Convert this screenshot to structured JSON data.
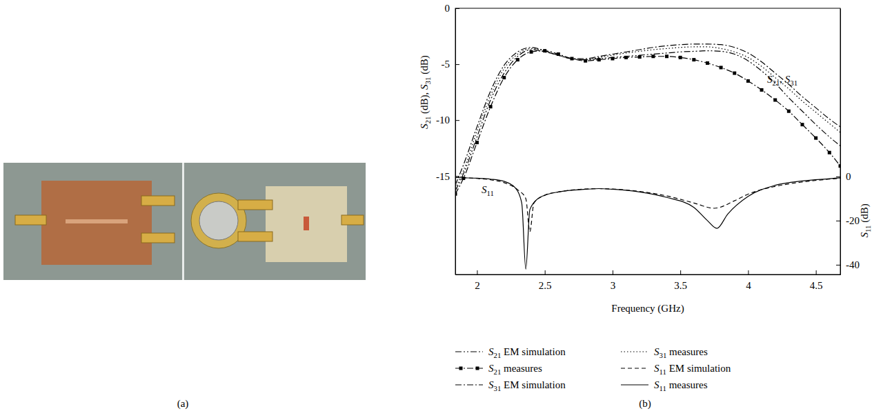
{
  "figure": {
    "panel_labels": [
      "(a)",
      "(b)"
    ]
  },
  "chart_data": {
    "type": "line",
    "x_label": "Frequency (GHz)",
    "y_label": "S21 (dB), S31 (dB)",
    "y2_label": "S11 (dB)",
    "xlim": [
      1.84,
      4.68
    ],
    "ylim": [
      -23.8,
      0
    ],
    "y2lim": [
      -44.4,
      76.2
    ],
    "xticks": [
      2,
      2.5,
      3,
      3.5,
      4,
      4.5
    ],
    "yticks": [
      0,
      -5,
      -10,
      -15
    ],
    "y2ticks": [
      0,
      -20,
      -40
    ],
    "legend": "bottom",
    "annotations": [
      "S21, S31",
      "S11"
    ],
    "x": [
      1.84,
      1.9,
      2.0,
      2.1,
      2.2,
      2.3,
      2.4,
      2.5,
      2.6,
      2.7,
      2.8,
      2.9,
      3.0,
      3.1,
      3.2,
      3.3,
      3.4,
      3.5,
      3.6,
      3.7,
      3.8,
      3.9,
      4.0,
      4.1,
      4.2,
      4.3,
      4.4,
      4.5,
      4.6,
      4.68
    ],
    "series": [
      {
        "name": "S21 EM simulation",
        "color": "#000000",
        "line_style": "dash-dot-dot",
        "values": [
          -16.3,
          -14.8,
          -11.5,
          -8.2,
          -5.8,
          -4.3,
          -3.7,
          -3.9,
          -4.2,
          -4.5,
          -4.6,
          -4.5,
          -4.4,
          -4.3,
          -4.2,
          -4.1,
          -4.0,
          -3.9,
          -3.85,
          -3.8,
          -3.85,
          -4.1,
          -4.7,
          -5.6,
          -6.7,
          -8.0,
          -9.2,
          -10.4,
          -11.5,
          -12.3
        ]
      },
      {
        "name": "S21 measures",
        "color": "#000000",
        "line_style": "dash-dot",
        "marker": "square",
        "values": [
          -16.6,
          -15.2,
          -12.0,
          -8.8,
          -6.2,
          -4.6,
          -3.9,
          -3.8,
          -4.1,
          -4.5,
          -4.7,
          -4.6,
          -4.5,
          -4.4,
          -4.35,
          -4.3,
          -4.3,
          -4.4,
          -4.6,
          -4.9,
          -5.3,
          -5.8,
          -6.5,
          -7.3,
          -8.2,
          -9.2,
          -10.4,
          -11.6,
          -12.9,
          -14.1
        ]
      },
      {
        "name": "S31 EM simulation",
        "color": "#000000",
        "line_style": "dash-dot",
        "values": [
          -15.8,
          -14.0,
          -10.6,
          -7.4,
          -5.1,
          -3.9,
          -3.5,
          -3.8,
          -4.2,
          -4.5,
          -4.5,
          -4.3,
          -4.1,
          -3.9,
          -3.7,
          -3.5,
          -3.35,
          -3.25,
          -3.2,
          -3.2,
          -3.25,
          -3.5,
          -4.0,
          -4.8,
          -5.8,
          -6.8,
          -7.9,
          -8.9,
          -9.9,
          -10.6
        ]
      },
      {
        "name": "S31 measures",
        "color": "#000000",
        "line_style": "dotted",
        "values": [
          -16.1,
          -14.5,
          -11.0,
          -7.8,
          -5.4,
          -4.1,
          -3.6,
          -3.8,
          -4.2,
          -4.5,
          -4.6,
          -4.4,
          -4.2,
          -4.0,
          -3.85,
          -3.7,
          -3.6,
          -3.5,
          -3.45,
          -3.45,
          -3.6,
          -3.9,
          -4.4,
          -5.2,
          -6.2,
          -7.2,
          -8.3,
          -9.3,
          -10.3,
          -11.1
        ]
      },
      {
        "name": "S11 EM simulation",
        "color": "#000000",
        "line_style": "dashed",
        "axis": "y2",
        "x": [
          1.84,
          2.0,
          2.1,
          2.2,
          2.3,
          2.36,
          2.39,
          2.42,
          2.5,
          2.6,
          2.8,
          2.9,
          3.0,
          3.2,
          3.4,
          3.6,
          3.75,
          3.9,
          4.0,
          4.2,
          4.4,
          4.6,
          4.68
        ],
        "values": [
          -0.4,
          -0.9,
          -1.5,
          -2.8,
          -6,
          -10,
          -25,
          -12,
          -8.5,
          -7,
          -5.7,
          -5.5,
          -5.7,
          -6.8,
          -8.8,
          -12,
          -14.4,
          -11,
          -8,
          -4.5,
          -2.5,
          -1.2,
          -0.8
        ]
      },
      {
        "name": "S11 measures",
        "color": "#000000",
        "line_style": "solid",
        "axis": "y2",
        "x": [
          1.84,
          2.0,
          2.1,
          2.2,
          2.28,
          2.33,
          2.36,
          2.39,
          2.45,
          2.5,
          2.6,
          2.8,
          2.9,
          3.0,
          3.2,
          3.4,
          3.6,
          3.7,
          3.77,
          3.85,
          4.0,
          4.2,
          4.4,
          4.6,
          4.68
        ],
        "values": [
          -0.5,
          -0.8,
          -1.2,
          -2.2,
          -5,
          -12,
          -42,
          -15,
          -10,
          -8.5,
          -7,
          -5.8,
          -5.5,
          -5.8,
          -7,
          -9.5,
          -14,
          -20,
          -23.5,
          -17,
          -9,
          -4,
          -2,
          -1,
          -0.6
        ]
      }
    ]
  }
}
